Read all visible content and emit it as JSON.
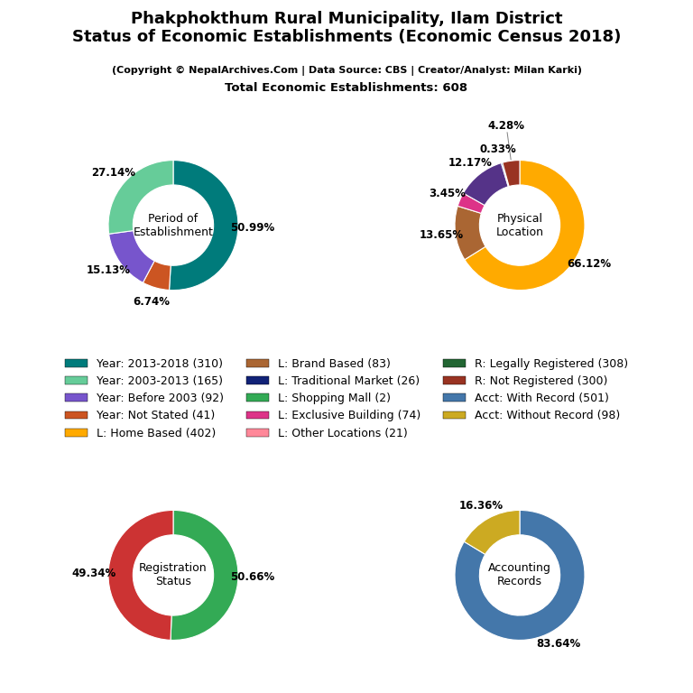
{
  "title": "Phakphokthum Rural Municipality, Ilam District\nStatus of Economic Establishments (Economic Census 2018)",
  "subtitle": [
    "(Copyright © NepalArchives.Com | Data Source: CBS | Creator/Analyst: Milan Karki)",
    "Total Economic Establishments: 608"
  ],
  "legend_entries": [
    {
      "name": "Year: 2013-2018 (310)",
      "color": "#007B7B"
    },
    {
      "name": "Year: 2003-2013 (165)",
      "color": "#66CC99"
    },
    {
      "name": "Year: Before 2003 (92)",
      "color": "#7755CC"
    },
    {
      "name": "Year: Not Stated (41)",
      "color": "#CC5522"
    },
    {
      "name": "L: Home Based (402)",
      "color": "#FFAA00"
    },
    {
      "name": "L: Brand Based (83)",
      "color": "#AA6633"
    },
    {
      "name": "L: Traditional Market (26)",
      "color": "#112277"
    },
    {
      "name": "L: Shopping Mall (2)",
      "color": "#33AA55"
    },
    {
      "name": "L: Exclusive Building (74)",
      "color": "#DD3388"
    },
    {
      "name": "L: Other Locations (21)",
      "color": "#FF8899"
    },
    {
      "name": "R: Legally Registered (308)",
      "color": "#226633"
    },
    {
      "name": "R: Not Registered (300)",
      "color": "#993322"
    },
    {
      "name": "Acct: With Record (501)",
      "color": "#4477AA"
    },
    {
      "name": "Acct: Without Record (98)",
      "color": "#CCAA22"
    }
  ],
  "chart_data": [
    {
      "type": "pie",
      "title": "Period of\nEstablishment",
      "values": [
        50.99,
        6.74,
        15.13,
        27.14
      ],
      "value_labels": [
        "50.99%",
        "6.74%",
        "15.13%",
        "27.14%"
      ],
      "colors": [
        "#007B7B",
        "#CC5522",
        "#7755CC",
        "#66CC99"
      ]
    },
    {
      "type": "pie",
      "title": "Physical\nLocation",
      "values": [
        66.12,
        13.65,
        3.45,
        12.17,
        0.33,
        4.28
      ],
      "value_labels": [
        "66.12%",
        "13.65%",
        "3.45%",
        "12.17%",
        "0.33%",
        "4.28%"
      ],
      "colors": [
        "#FFAA00",
        "#AA6633",
        "#DD3388",
        "#553388",
        "#112277",
        "#993322"
      ]
    },
    {
      "type": "pie",
      "title": "Registration\nStatus",
      "values": [
        50.66,
        49.34
      ],
      "value_labels": [
        "50.66%",
        "49.34%"
      ],
      "colors": [
        "#33AA55",
        "#CC3333"
      ]
    },
    {
      "type": "pie",
      "title": "Accounting\nRecords",
      "values": [
        83.64,
        16.36
      ],
      "value_labels": [
        "83.64%",
        "16.36%"
      ],
      "colors": [
        "#4477AA",
        "#CCAA22"
      ]
    }
  ]
}
